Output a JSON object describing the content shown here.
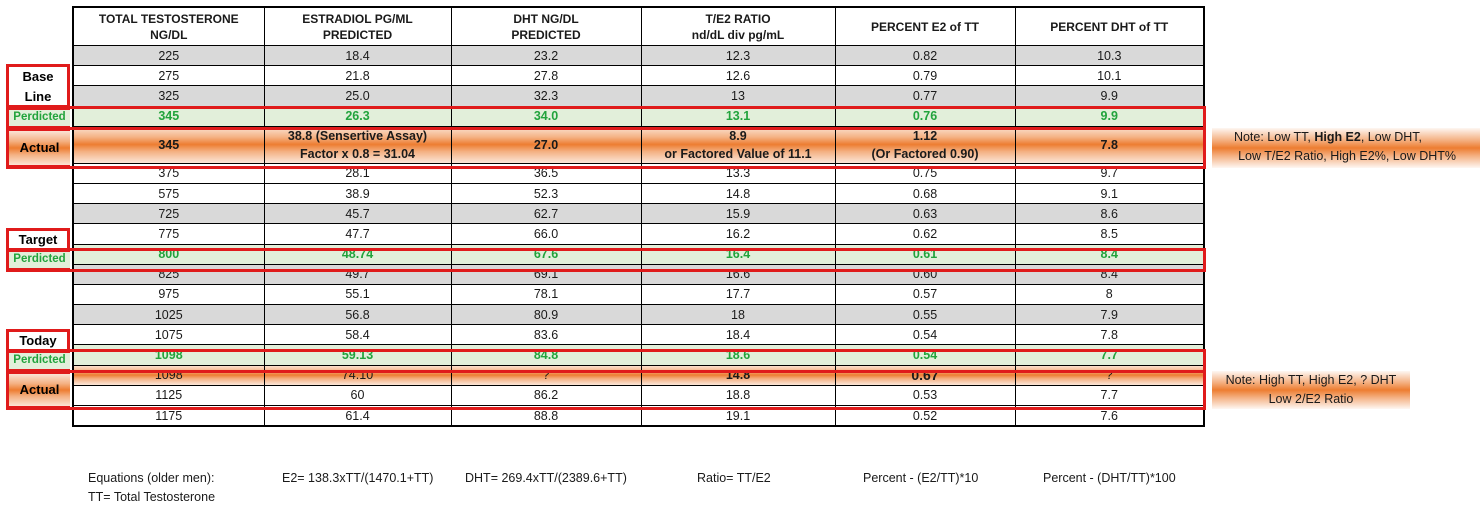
{
  "table": {
    "headers": [
      [
        "TOTAL TESTOSTERONE",
        "NG/DL"
      ],
      [
        "ESTRADIOL PG/ML",
        "PREDICTED"
      ],
      [
        "DHT NG/DL",
        "PREDICTED"
      ],
      [
        "T/E2 RATIO",
        "nd/dL div pg/mL"
      ],
      [
        "PERCENT E2 of TT",
        ""
      ],
      [
        "PERCENT DHT of TT",
        ""
      ]
    ],
    "rows": [
      {
        "style": "gray",
        "cells": [
          "225",
          "18.4",
          "23.2",
          "12.3",
          "0.82",
          "10.3"
        ]
      },
      {
        "style": "white",
        "cells": [
          "275",
          "21.8",
          "27.8",
          "12.6",
          "0.79",
          "10.1"
        ]
      },
      {
        "style": "gray",
        "cells": [
          "325",
          "25.0",
          "32.3",
          "13",
          "0.77",
          "9.9"
        ]
      },
      {
        "style": "pred",
        "cells": [
          "345",
          "26.3",
          "34.0",
          "13.1",
          "0.76",
          "9.9"
        ]
      },
      {
        "style": "actual a1",
        "cells": [
          [
            "345"
          ],
          [
            "38.8  (Sensertive Assay)",
            "Factor x 0.8 = 31.04"
          ],
          [
            "27.0"
          ],
          [
            "8.9",
            "or Factored Value of  11.1"
          ],
          [
            "1.12",
            "(Or Factored 0.90)"
          ],
          [
            "7.8"
          ]
        ]
      },
      {
        "style": "white",
        "cells": [
          "375",
          "28.1",
          "36.5",
          "13.3",
          "0.75",
          "9.7"
        ]
      },
      {
        "style": "white",
        "cells": [
          "575",
          "38.9",
          "52.3",
          "14.8",
          "0.68",
          "9.1"
        ]
      },
      {
        "style": "gray",
        "cells": [
          "725",
          "45.7",
          "62.7",
          "15.9",
          "0.63",
          "8.6"
        ]
      },
      {
        "style": "white",
        "cells": [
          "775",
          "47.7",
          "66.0",
          "16.2",
          "0.62",
          "8.5"
        ]
      },
      {
        "style": "pred",
        "cells": [
          "800",
          "48.74",
          "67.6",
          "16.4",
          "0.61",
          "8.4"
        ]
      },
      {
        "style": "gray",
        "cells": [
          "825",
          "49.7",
          "69.1",
          "16.6",
          "0.60",
          "8.4"
        ]
      },
      {
        "style": "white",
        "cells": [
          "975",
          "55.1",
          "78.1",
          "17.7",
          "0.57",
          "8"
        ]
      },
      {
        "style": "gray",
        "cells": [
          "1025",
          "56.8",
          "80.9",
          "18",
          "0.55",
          "7.9"
        ]
      },
      {
        "style": "white",
        "cells": [
          "1075",
          "58.4",
          "83.6",
          "18.4",
          "0.54",
          "7.8"
        ]
      },
      {
        "style": "pred",
        "cells": [
          "1098",
          "59.13",
          "84.8",
          "18.6",
          "0.54",
          "7.7"
        ]
      },
      {
        "style": "actual a2",
        "cells": [
          [
            "1098"
          ],
          [
            "74.10"
          ],
          [
            "?"
          ],
          [
            "14.8"
          ],
          [
            "0.67"
          ],
          [
            "?"
          ]
        ]
      },
      {
        "style": "white",
        "cells": [
          "1125",
          "60",
          "86.2",
          "18.8",
          "0.53",
          "7.7"
        ]
      },
      {
        "style": "white",
        "cells": [
          "1175",
          "61.4",
          "88.8",
          "19.1",
          "0.52",
          "7.6"
        ]
      }
    ]
  },
  "labels": {
    "base_line": [
      "Base",
      "Line"
    ],
    "perdicted": "Perdicted",
    "actual": "Actual",
    "target": "Target",
    "today": "Today"
  },
  "notes": {
    "note1_line1_a": "Note: Low TT, ",
    "note1_line1_b": "High E2",
    "note1_line1_c": ", Low DHT,",
    "note1_line2": "Low T/E2 Ratio, High E2%, Low DHT%",
    "note2_line1": "Note: High TT, High E2, ? DHT",
    "note2_line2": "Low 2/E2 Ratio"
  },
  "equations": {
    "label": "Equations (older men):",
    "tt": "TT= Total Testosterone",
    "e2": "E2= 138.3xTT/(1470.1+TT)",
    "dht": "DHT= 269.4xTT/(2389.6+TT)",
    "ratio": "Ratio= TT/E2",
    "pct_e2": "Percent - (E2/TT)*10",
    "pct_dht": "Percent - (DHT/TT)*100"
  }
}
